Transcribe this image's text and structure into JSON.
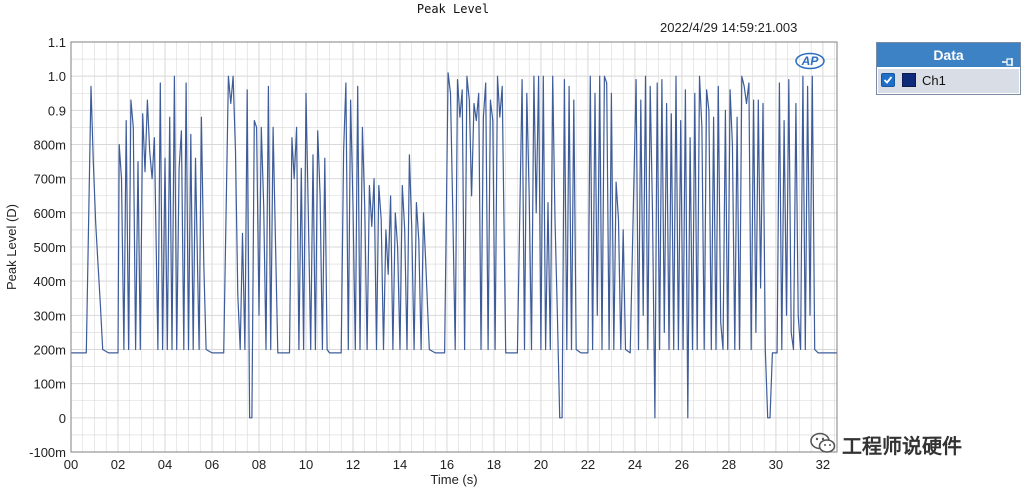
{
  "window": {
    "timestamp": "2022/4/29 14:59:21.003",
    "logo_text": "AP"
  },
  "legend": {
    "title": "Data",
    "items": [
      {
        "label": "Ch1",
        "checked": true,
        "color": "#0f2a78"
      }
    ]
  },
  "watermark": {
    "text": "工程师说硬件"
  },
  "colors": {
    "line": "#3e5c99",
    "grid": "#d8d8d8",
    "axis": "#808080",
    "accent": "#3d82c4"
  },
  "chart_data": {
    "type": "line",
    "title": "Peak Level",
    "xlabel": "Time (s)",
    "ylabel": "Peak Level (D)",
    "xlim": [
      0,
      32.6
    ],
    "ylim": [
      -0.1,
      1.1
    ],
    "grid": true,
    "x_ticks": [
      {
        "v": 0,
        "label": "00"
      },
      {
        "v": 2,
        "label": "02"
      },
      {
        "v": 4,
        "label": "04"
      },
      {
        "v": 6,
        "label": "06"
      },
      {
        "v": 8,
        "label": "08"
      },
      {
        "v": 10,
        "label": "10"
      },
      {
        "v": 12,
        "label": "12"
      },
      {
        "v": 14,
        "label": "14"
      },
      {
        "v": 16,
        "label": "16"
      },
      {
        "v": 18,
        "label": "18"
      },
      {
        "v": 20,
        "label": "20"
      },
      {
        "v": 22,
        "label": "22"
      },
      {
        "v": 24,
        "label": "24"
      },
      {
        "v": 26,
        "label": "26"
      },
      {
        "v": 28,
        "label": "28"
      },
      {
        "v": 30,
        "label": "30"
      },
      {
        "v": 32,
        "label": "32"
      }
    ],
    "y_ticks": [
      {
        "v": 1.1,
        "label": "1.1"
      },
      {
        "v": 1.0,
        "label": "1.0"
      },
      {
        "v": 0.9,
        "label": "0.9"
      },
      {
        "v": 0.8,
        "label": "800m"
      },
      {
        "v": 0.7,
        "label": "700m"
      },
      {
        "v": 0.6,
        "label": "600m"
      },
      {
        "v": 0.5,
        "label": "500m"
      },
      {
        "v": 0.4,
        "label": "400m"
      },
      {
        "v": 0.3,
        "label": "300m"
      },
      {
        "v": 0.2,
        "label": "200m"
      },
      {
        "v": 0.1,
        "label": "100m"
      },
      {
        "v": 0,
        "label": "0"
      },
      {
        "v": -0.1,
        "label": "-100m"
      }
    ],
    "series": [
      {
        "name": "Ch1",
        "points": [
          [
            0.0,
            0.19
          ],
          [
            0.4,
            0.19
          ],
          [
            0.65,
            0.19
          ],
          [
            0.85,
            0.97
          ],
          [
            0.95,
            0.75
          ],
          [
            1.05,
            0.57
          ],
          [
            1.15,
            0.45
          ],
          [
            1.25,
            0.33
          ],
          [
            1.35,
            0.2
          ],
          [
            1.6,
            0.19
          ],
          [
            2.0,
            0.19
          ],
          [
            2.05,
            0.8
          ],
          [
            2.15,
            0.7
          ],
          [
            2.25,
            0.2
          ],
          [
            2.35,
            0.87
          ],
          [
            2.45,
            0.2
          ],
          [
            2.55,
            0.93
          ],
          [
            2.65,
            0.85
          ],
          [
            2.75,
            0.2
          ],
          [
            2.85,
            0.75
          ],
          [
            2.95,
            0.2
          ],
          [
            3.05,
            0.89
          ],
          [
            3.15,
            0.72
          ],
          [
            3.25,
            0.93
          ],
          [
            3.35,
            0.78
          ],
          [
            3.45,
            0.7
          ],
          [
            3.55,
            0.82
          ],
          [
            3.7,
            0.2
          ],
          [
            3.8,
            0.98
          ],
          [
            3.9,
            0.2
          ],
          [
            4.0,
            0.76
          ],
          [
            4.1,
            0.2
          ],
          [
            4.2,
            0.88
          ],
          [
            4.3,
            0.2
          ],
          [
            4.4,
            1.0
          ],
          [
            4.5,
            0.2
          ],
          [
            4.6,
            0.73
          ],
          [
            4.7,
            0.84
          ],
          [
            4.8,
            0.2
          ],
          [
            4.9,
            0.98
          ],
          [
            5.0,
            0.2
          ],
          [
            5.1,
            0.83
          ],
          [
            5.2,
            0.2
          ],
          [
            5.3,
            0.76
          ],
          [
            5.45,
            0.2
          ],
          [
            5.55,
            0.88
          ],
          [
            5.65,
            0.45
          ],
          [
            5.75,
            0.2
          ],
          [
            6.0,
            0.19
          ],
          [
            6.5,
            0.19
          ],
          [
            6.7,
            1.0
          ],
          [
            6.8,
            0.92
          ],
          [
            6.9,
            1.0
          ],
          [
            7.0,
            0.78
          ],
          [
            7.1,
            0.36
          ],
          [
            7.2,
            0.2
          ],
          [
            7.3,
            0.54
          ],
          [
            7.4,
            0.2
          ],
          [
            7.5,
            0.96
          ],
          [
            7.6,
            0.0
          ],
          [
            7.7,
            0.0
          ],
          [
            7.8,
            0.87
          ],
          [
            7.9,
            0.85
          ],
          [
            8.0,
            0.3
          ],
          [
            8.1,
            0.85
          ],
          [
            8.2,
            0.62
          ],
          [
            8.3,
            0.2
          ],
          [
            8.4,
            0.97
          ],
          [
            8.5,
            0.2
          ],
          [
            8.6,
            0.85
          ],
          [
            8.8,
            0.19
          ],
          [
            9.3,
            0.19
          ],
          [
            9.4,
            0.82
          ],
          [
            9.5,
            0.7
          ],
          [
            9.6,
            0.85
          ],
          [
            9.7,
            0.2
          ],
          [
            9.8,
            0.73
          ],
          [
            9.9,
            0.2
          ],
          [
            10.0,
            0.95
          ],
          [
            10.1,
            0.6
          ],
          [
            10.2,
            0.2
          ],
          [
            10.3,
            0.77
          ],
          [
            10.4,
            0.2
          ],
          [
            10.5,
            0.84
          ],
          [
            10.6,
            0.65
          ],
          [
            10.7,
            0.2
          ],
          [
            10.8,
            0.76
          ],
          [
            10.9,
            0.2
          ],
          [
            11.0,
            0.19
          ],
          [
            11.5,
            0.19
          ],
          [
            11.6,
            0.78
          ],
          [
            11.7,
            0.98
          ],
          [
            11.8,
            0.2
          ],
          [
            11.9,
            0.93
          ],
          [
            12.0,
            0.62
          ],
          [
            12.1,
            0.2
          ],
          [
            12.2,
            0.97
          ],
          [
            12.3,
            0.2
          ],
          [
            12.4,
            0.85
          ],
          [
            12.5,
            0.62
          ],
          [
            12.6,
            0.2
          ],
          [
            12.7,
            0.68
          ],
          [
            12.8,
            0.56
          ],
          [
            12.9,
            0.7
          ],
          [
            13.0,
            0.2
          ],
          [
            13.1,
            0.68
          ],
          [
            13.2,
            0.58
          ],
          [
            13.3,
            0.2
          ],
          [
            13.4,
            0.55
          ],
          [
            13.5,
            0.42
          ],
          [
            13.6,
            0.65
          ],
          [
            13.7,
            0.2
          ],
          [
            13.8,
            0.6
          ],
          [
            13.9,
            0.5
          ],
          [
            14.0,
            0.2
          ],
          [
            14.1,
            0.68
          ],
          [
            14.2,
            0.55
          ],
          [
            14.3,
            0.2
          ],
          [
            14.4,
            0.77
          ],
          [
            14.5,
            0.56
          ],
          [
            14.6,
            0.2
          ],
          [
            14.7,
            0.63
          ],
          [
            14.8,
            0.52
          ],
          [
            14.9,
            0.2
          ],
          [
            15.0,
            0.6
          ],
          [
            15.1,
            0.45
          ],
          [
            15.25,
            0.2
          ],
          [
            15.5,
            0.19
          ],
          [
            15.9,
            0.19
          ],
          [
            16.05,
            1.01
          ],
          [
            16.15,
            0.95
          ],
          [
            16.25,
            0.6
          ],
          [
            16.35,
            0.2
          ],
          [
            16.45,
            0.99
          ],
          [
            16.55,
            0.88
          ],
          [
            16.65,
            0.96
          ],
          [
            16.75,
            0.2
          ],
          [
            16.85,
            1.0
          ],
          [
            16.95,
            0.93
          ],
          [
            17.05,
            0.65
          ],
          [
            17.15,
            0.92
          ],
          [
            17.25,
            0.87
          ],
          [
            17.35,
            0.95
          ],
          [
            17.45,
            0.2
          ],
          [
            17.55,
            0.88
          ],
          [
            17.65,
            0.98
          ],
          [
            17.75,
            0.2
          ],
          [
            17.85,
            0.93
          ],
          [
            17.95,
            0.87
          ],
          [
            18.05,
            0.2
          ],
          [
            18.15,
            1.0
          ],
          [
            18.25,
            0.88
          ],
          [
            18.35,
            0.97
          ],
          [
            18.5,
            0.19
          ],
          [
            18.8,
            0.19
          ],
          [
            19.0,
            0.19
          ],
          [
            19.2,
            0.99
          ],
          [
            19.3,
            0.2
          ],
          [
            19.4,
            0.95
          ],
          [
            19.5,
            0.65
          ],
          [
            19.6,
            0.2
          ],
          [
            19.7,
            1.0
          ],
          [
            19.8,
            0.6
          ],
          [
            19.9,
            1.0
          ],
          [
            20.0,
            0.2
          ],
          [
            20.1,
            1.0
          ],
          [
            20.2,
            0.2
          ],
          [
            20.3,
            0.63
          ],
          [
            20.4,
            0.2
          ],
          [
            20.5,
            1.0
          ],
          [
            20.6,
            0.58
          ],
          [
            20.7,
            0.3
          ],
          [
            20.8,
            0.0
          ],
          [
            20.9,
            0.0
          ],
          [
            21.0,
            0.99
          ],
          [
            21.1,
            0.2
          ],
          [
            21.2,
            0.97
          ],
          [
            21.3,
            0.2
          ],
          [
            21.4,
            0.93
          ],
          [
            21.5,
            0.2
          ],
          [
            21.7,
            0.19
          ],
          [
            22.0,
            0.19
          ],
          [
            22.1,
            1.0
          ],
          [
            22.2,
            0.2
          ],
          [
            22.3,
            0.95
          ],
          [
            22.4,
            0.3
          ],
          [
            22.5,
            1.0
          ],
          [
            22.6,
            0.2
          ],
          [
            22.7,
            1.0
          ],
          [
            22.8,
            0.98
          ],
          [
            22.9,
            0.2
          ],
          [
            23.0,
            0.95
          ],
          [
            23.1,
            0.2
          ],
          [
            23.2,
            0.69
          ],
          [
            23.3,
            0.58
          ],
          [
            23.4,
            0.2
          ],
          [
            23.5,
            0.55
          ],
          [
            23.6,
            0.2
          ],
          [
            23.8,
            0.19
          ],
          [
            24.05,
            0.99
          ],
          [
            24.15,
            0.2
          ],
          [
            24.25,
            0.93
          ],
          [
            24.35,
            0.3
          ],
          [
            24.45,
            1.0
          ],
          [
            24.55,
            0.2
          ],
          [
            24.65,
            0.97
          ],
          [
            24.75,
            0.6
          ],
          [
            24.85,
            0.0
          ],
          [
            24.95,
            0.98
          ],
          [
            25.05,
            0.2
          ],
          [
            25.15,
            0.99
          ],
          [
            25.25,
            0.25
          ],
          [
            25.35,
            0.92
          ],
          [
            25.45,
            0.2
          ],
          [
            25.55,
            0.89
          ],
          [
            25.65,
            0.2
          ],
          [
            25.75,
            1.0
          ],
          [
            25.85,
            0.2
          ],
          [
            25.95,
            0.87
          ],
          [
            26.05,
            0.2
          ],
          [
            26.15,
            0.96
          ],
          [
            26.25,
            0.0
          ],
          [
            26.35,
            0.82
          ],
          [
            26.45,
            0.2
          ],
          [
            26.55,
            0.95
          ],
          [
            26.65,
            0.2
          ],
          [
            26.75,
            1.0
          ],
          [
            26.85,
            0.85
          ],
          [
            26.95,
            0.2
          ],
          [
            27.05,
            0.96
          ],
          [
            27.15,
            0.9
          ],
          [
            27.25,
            0.2
          ],
          [
            27.35,
            0.88
          ],
          [
            27.45,
            0.2
          ],
          [
            27.55,
            0.97
          ],
          [
            27.65,
            0.28
          ],
          [
            27.75,
            0.2
          ],
          [
            27.85,
            0.9
          ],
          [
            27.95,
            0.2
          ],
          [
            28.05,
            0.96
          ],
          [
            28.15,
            0.8
          ],
          [
            28.25,
            0.2
          ],
          [
            28.35,
            0.88
          ],
          [
            28.45,
            0.2
          ],
          [
            28.55,
            1.0
          ],
          [
            28.65,
            0.97
          ],
          [
            28.75,
            0.92
          ],
          [
            28.85,
            0.98
          ],
          [
            28.95,
            0.2
          ],
          [
            29.05,
            0.93
          ],
          [
            29.15,
            0.25
          ],
          [
            29.25,
            0.93
          ],
          [
            29.35,
            0.38
          ],
          [
            29.45,
            0.92
          ],
          [
            29.55,
            0.2
          ],
          [
            29.65,
            0.0
          ],
          [
            29.75,
            0.0
          ],
          [
            29.85,
            0.19
          ],
          [
            30.05,
            0.19
          ],
          [
            30.15,
            0.98
          ],
          [
            30.25,
            0.2
          ],
          [
            30.35,
            0.87
          ],
          [
            30.45,
            0.3
          ],
          [
            30.55,
            0.99
          ],
          [
            30.65,
            0.25
          ],
          [
            30.75,
            0.2
          ],
          [
            30.85,
            0.92
          ],
          [
            30.95,
            0.3
          ],
          [
            31.05,
            0.2
          ],
          [
            31.15,
            1.0
          ],
          [
            31.25,
            0.2
          ],
          [
            31.35,
            0.97
          ],
          [
            31.45,
            0.3
          ],
          [
            31.55,
            1.0
          ],
          [
            31.65,
            0.2
          ],
          [
            31.8,
            0.19
          ],
          [
            32.2,
            0.19
          ],
          [
            32.6,
            0.19
          ]
        ]
      }
    ]
  }
}
